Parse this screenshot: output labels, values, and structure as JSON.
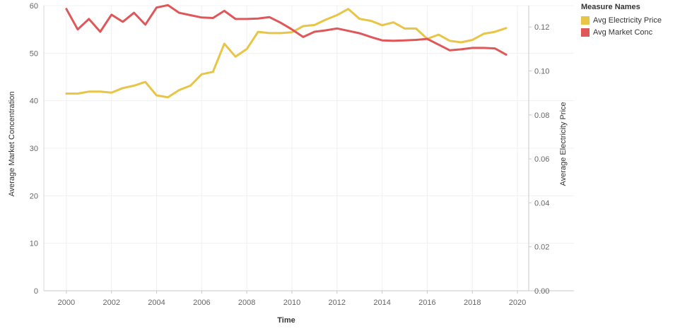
{
  "legend": {
    "title": "Measure Names",
    "items": [
      {
        "label": "Avg Electricity Price",
        "color": "#E8C547"
      },
      {
        "label": "Avg Market Conc",
        "color": "#E05759"
      }
    ]
  },
  "chart_data": {
    "type": "line",
    "xlabel": "Time",
    "ylabel_left": "Average Market Concentration",
    "ylabel_right": "Average Electricity Price",
    "xlim": [
      1999,
      2020.5
    ],
    "xticks": [
      2000,
      2002,
      2004,
      2006,
      2008,
      2010,
      2012,
      2014,
      2016,
      2018,
      2020
    ],
    "ylim_left": [
      0,
      60
    ],
    "yticks_left": [
      "0",
      "10",
      "20",
      "30",
      "40",
      "50",
      "60"
    ],
    "ylim_right": [
      0,
      0.1297
    ],
    "yticks_right": [
      "0.00",
      "0.02",
      "0.04",
      "0.06",
      "0.08",
      "0.10",
      "0.12"
    ],
    "grid": true,
    "legend_position": "top-right",
    "series": [
      {
        "name": "Avg Electricity Price",
        "axis": "right",
        "color": "#E8C547",
        "x": [
          2000,
          2000.5,
          2001,
          2001.5,
          2002,
          2002.5,
          2003,
          2003.5,
          2004,
          2004.5,
          2005,
          2005.5,
          2006,
          2006.5,
          2007,
          2007.5,
          2008,
          2008.5,
          2009,
          2009.5,
          2010,
          2010.5,
          2011,
          2011.5,
          2012,
          2012.5,
          2013,
          2013.5,
          2014,
          2014.5,
          2015,
          2015.5,
          2016,
          2016.5,
          2017,
          2017.5,
          2018,
          2018.5,
          2019,
          2019.5
        ],
        "values": [
          0.0897,
          0.0897,
          0.0906,
          0.0906,
          0.0901,
          0.0922,
          0.0933,
          0.095,
          0.0889,
          0.088,
          0.0913,
          0.0933,
          0.0985,
          0.0996,
          0.1124,
          0.1065,
          0.11,
          0.1178,
          0.1172,
          0.1172,
          0.1176,
          0.1204,
          0.1209,
          0.1233,
          0.1254,
          0.1282,
          0.1237,
          0.1228,
          0.1208,
          0.1221,
          0.1193,
          0.1193,
          0.1146,
          0.1165,
          0.1137,
          0.113,
          0.1141,
          0.1169,
          0.1178,
          0.1195
        ]
      },
      {
        "name": "Avg Market Conc",
        "axis": "left",
        "color": "#E05759",
        "x": [
          2000,
          2000.5,
          2001,
          2001.5,
          2002,
          2002.5,
          2003,
          2003.5,
          2004,
          2004.5,
          2005,
          2005.5,
          2006,
          2006.5,
          2007,
          2007.5,
          2008,
          2008.5,
          2009,
          2009.5,
          2010,
          2010.5,
          2011,
          2011.5,
          2012,
          2012.5,
          2013,
          2013.5,
          2014,
          2014.5,
          2015,
          2015.5,
          2016,
          2016.5,
          2017,
          2017.5,
          2018,
          2018.5,
          2019,
          2019.5
        ],
        "values": [
          59.3,
          55.0,
          57.2,
          54.5,
          58.1,
          56.6,
          58.5,
          56.0,
          59.6,
          60.1,
          58.5,
          58.0,
          57.5,
          57.4,
          58.9,
          57.2,
          57.2,
          57.3,
          57.6,
          56.4,
          55.0,
          53.4,
          54.5,
          54.8,
          55.2,
          54.7,
          54.2,
          53.4,
          52.7,
          52.6,
          52.7,
          52.8,
          53.0,
          51.8,
          50.6,
          50.8,
          51.1,
          51.1,
          51.0,
          49.7
        ]
      }
    ]
  }
}
